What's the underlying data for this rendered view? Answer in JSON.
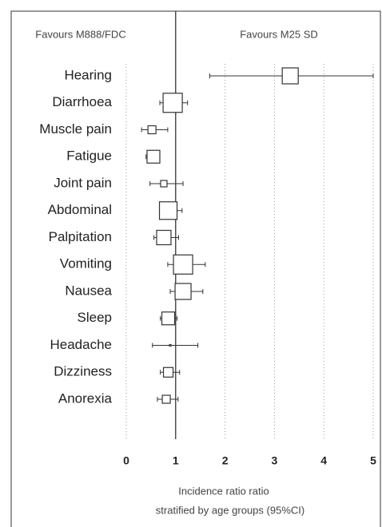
{
  "chart_data": {
    "type": "forest",
    "left_label": "Favours M888/FDC",
    "right_label": "Favours M25 SD",
    "xlabel": [
      "Incidence ratio ratio",
      "stratified by age groups (95%CI)"
    ],
    "categories": [
      "Hearing",
      "Diarrhoea",
      "Muscle pain",
      "Fatigue",
      "Joint pain",
      "Abdominal",
      "Palpitation",
      "Vomiting",
      "Nausea",
      "Sleep",
      "Headache",
      "Dizziness",
      "Anorexia"
    ],
    "values": [
      3.32,
      0.94,
      0.52,
      0.55,
      0.76,
      0.85,
      0.76,
      1.15,
      1.15,
      0.85,
      0.89,
      0.85,
      0.81
    ],
    "lower": [
      1.69,
      0.68,
      0.31,
      0.4,
      0.48,
      0.68,
      0.56,
      0.84,
      0.89,
      0.69,
      0.53,
      0.69,
      0.63
    ],
    "upper": [
      5,
      1.24,
      0.84,
      0.68,
      1.15,
      1.13,
      1.06,
      1.6,
      1.55,
      1.03,
      1.45,
      1.08,
      1.05
    ],
    "weights": [
      20,
      24,
      10,
      16,
      8,
      22,
      18,
      24,
      20,
      16,
      2,
      12,
      10
    ],
    "xlim": [
      0,
      5
    ],
    "xticks": [
      0,
      1,
      2,
      3,
      4,
      5
    ],
    "reference_line": 1,
    "grid": true,
    "color": "#333333"
  }
}
